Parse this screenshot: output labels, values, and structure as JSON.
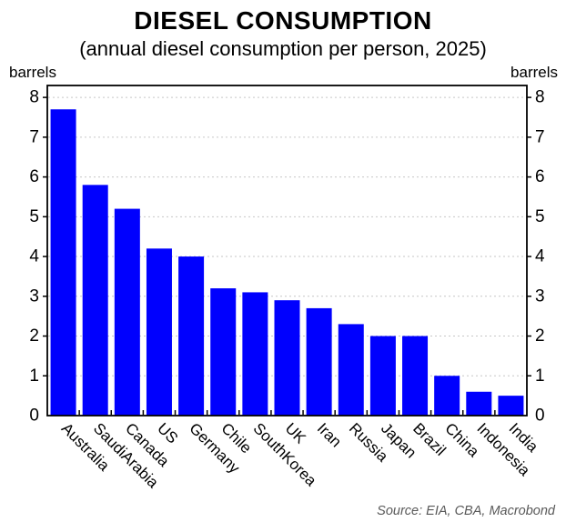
{
  "chart_data": {
    "type": "bar",
    "title": "DIESEL CONSUMPTION",
    "subtitle": "(annual diesel consumption per person, 2025)",
    "unit_label_left": "barrels",
    "unit_label_right": "barrels",
    "categories": [
      "Australia",
      "SaudiArabia",
      "Canada",
      "US",
      "Germany",
      "Chile",
      "SouthKorea",
      "UK",
      "Iran",
      "Russia",
      "Japan",
      "Brazil",
      "China",
      "Indonesia",
      "India"
    ],
    "values": [
      7.7,
      5.8,
      5.2,
      4.2,
      4.0,
      3.2,
      3.1,
      2.9,
      2.7,
      2.3,
      2.0,
      2.0,
      1.0,
      0.6,
      0.5
    ],
    "ylabel": "barrels",
    "xlabel": "",
    "ylim": [
      0,
      8.3
    ],
    "yticks": [
      0,
      1,
      2,
      3,
      4,
      5,
      6,
      7,
      8
    ],
    "grid": "horizontal-dashed",
    "legend_position": "none",
    "bar_color": "#0000FE",
    "grid_color": "#c6c6c6",
    "axis_color": "#000000",
    "tick_label_color": "#000000",
    "source": "Source: EIA, CBA, Macrobond",
    "source_color": "#595959"
  }
}
